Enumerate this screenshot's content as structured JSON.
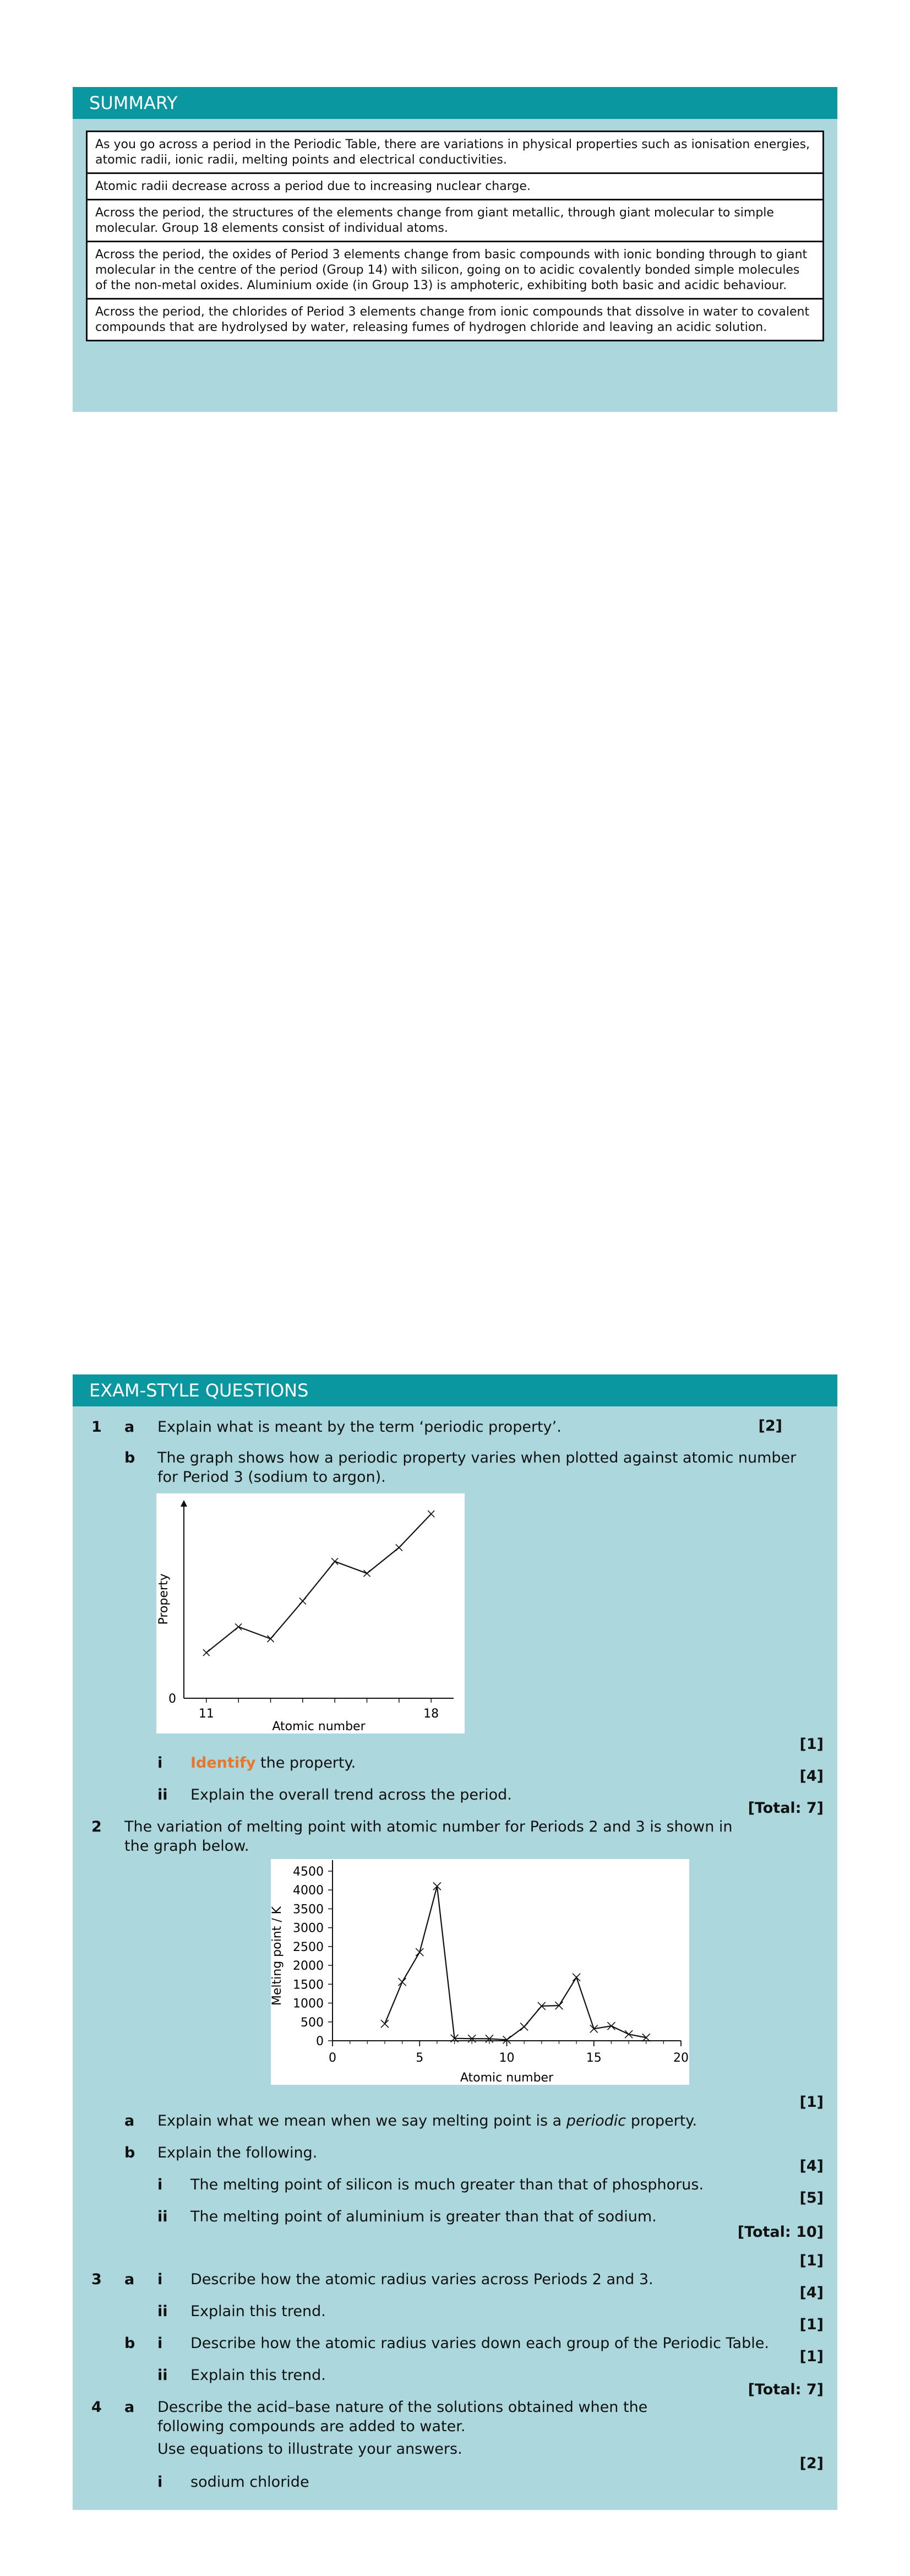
{
  "summary": {
    "title": "SUMMARY",
    "items": [
      "As you go across a period in the Periodic Table, there are variations in physical properties such as ionisation energies, atomic radii, ionic radii, melting points and electrical conductivities.",
      "Atomic radii decrease across a period due to increasing nuclear charge.",
      "Across the period, the structures of the elements change from giant metallic, through giant molecular to simple molecular. Group 18 elements consist of individual atoms.",
      "Across the period, the oxides of Period 3 elements change from basic compounds with ionic bonding through to giant molecular in the centre of the period (Group 14) with silicon, going on to acidic covalently bonded simple molecules of the non-metal oxides. Aluminium oxide (in Group 13) is amphoteric, exhibiting both basic and acidic behaviour.",
      "Across the period, the chlorides of Period 3 elements change from ionic compounds that dissolve in water to covalent compounds that are hydrolysed by water, releasing fumes of hydrogen chloride and leaving an acidic solution."
    ]
  },
  "exam": {
    "title": "EXAM-STYLE QUESTIONS",
    "q1": {
      "num": "1",
      "a_label": "a",
      "a_text": "Explain what is meant by the term ‘periodic property’.",
      "a_mark": "[2]",
      "b_label": "b",
      "b_text": "The graph shows how a periodic property varies when plotted against atomic number for Period 3 (sodium to argon).",
      "b_i_mark": "[1]",
      "b_i_label": "i",
      "b_i_keyword": "Identify",
      "b_i_rest": " the property.",
      "b_ii_mark": "[4]",
      "b_ii_label": "ii",
      "b_ii_text": "Explain the overall trend across the period.",
      "total": "[Total: 7]"
    },
    "q2": {
      "num": "2",
      "text": "The variation of melting point with atomic number for Periods 2 and 3 is shown in the graph below.",
      "a_mark": "[1]",
      "a_label": "a",
      "a_text_1": "Explain what we mean when we say melting point is a ",
      "a_text_em": "periodic",
      "a_text_2": " property.",
      "b_label": "b",
      "b_text": "Explain the following.",
      "b_i_mark": "[4]",
      "b_i_label": "i",
      "b_i_text": "The melting point of silicon is much greater than that of phosphorus.",
      "b_ii_mark": "[5]",
      "b_ii_label": "ii",
      "b_ii_text": "The melting point of aluminium is greater than that of sodium.",
      "total": "[Total: 10]"
    },
    "q3": {
      "num": "3",
      "a_i_mark": "[1]",
      "a_label": "a",
      "a_i_label": "i",
      "a_i_text": "Describe how the atomic radius varies across Periods 2 and 3.",
      "a_ii_mark": "[4]",
      "a_ii_label": "ii",
      "a_ii_text": "Explain this trend.",
      "b_i_mark": "[1]",
      "b_label": "b",
      "b_i_label": "i",
      "b_i_text": "Describe how the atomic radius varies down each group of the Periodic Table.",
      "b_ii_mark": "[1]",
      "b_ii_label": "ii",
      "b_ii_text": "Explain this trend.",
      "total": "[Total: 7]"
    },
    "q4": {
      "num": "4",
      "a_label": "a",
      "a_text": "Describe the acid–base nature of the solutions obtained when the following compounds are added to water.",
      "a_text2": "Use equations to illustrate your answers.",
      "i_mark": "[2]",
      "i_label": "i",
      "i_text": "sodium chloride"
    }
  },
  "chart_data": [
    {
      "type": "line",
      "title": "",
      "xlabel": "Atomic number",
      "ylabel": "Property",
      "x": [
        11,
        12,
        13,
        14,
        15,
        16,
        17,
        18
      ],
      "y": [
        0.23,
        0.36,
        0.3,
        0.49,
        0.69,
        0.63,
        0.76,
        0.93
      ],
      "x_tick_labels": [
        "11",
        "18"
      ],
      "y_tick_labels": [
        "0"
      ],
      "xlim": [
        10.3,
        18.7
      ],
      "ylim": [
        0,
        1
      ]
    },
    {
      "type": "line",
      "title": "",
      "xlabel": "Atomic number",
      "ylabel": "Melting point / K",
      "x": [
        3,
        4,
        5,
        6,
        7,
        8,
        9,
        10,
        11,
        12,
        13,
        14,
        15,
        16,
        17,
        18
      ],
      "y": [
        450,
        1560,
        2350,
        4100,
        63,
        55,
        53,
        25,
        371,
        922,
        933,
        1683,
        317,
        392,
        172,
        84
      ],
      "x_ticks": [
        0,
        5,
        10,
        15,
        20
      ],
      "y_ticks": [
        0,
        500,
        1000,
        1500,
        2000,
        2500,
        3000,
        3500,
        4000,
        4500
      ],
      "xlim": [
        0,
        20
      ],
      "ylim": [
        0,
        4500
      ]
    }
  ]
}
